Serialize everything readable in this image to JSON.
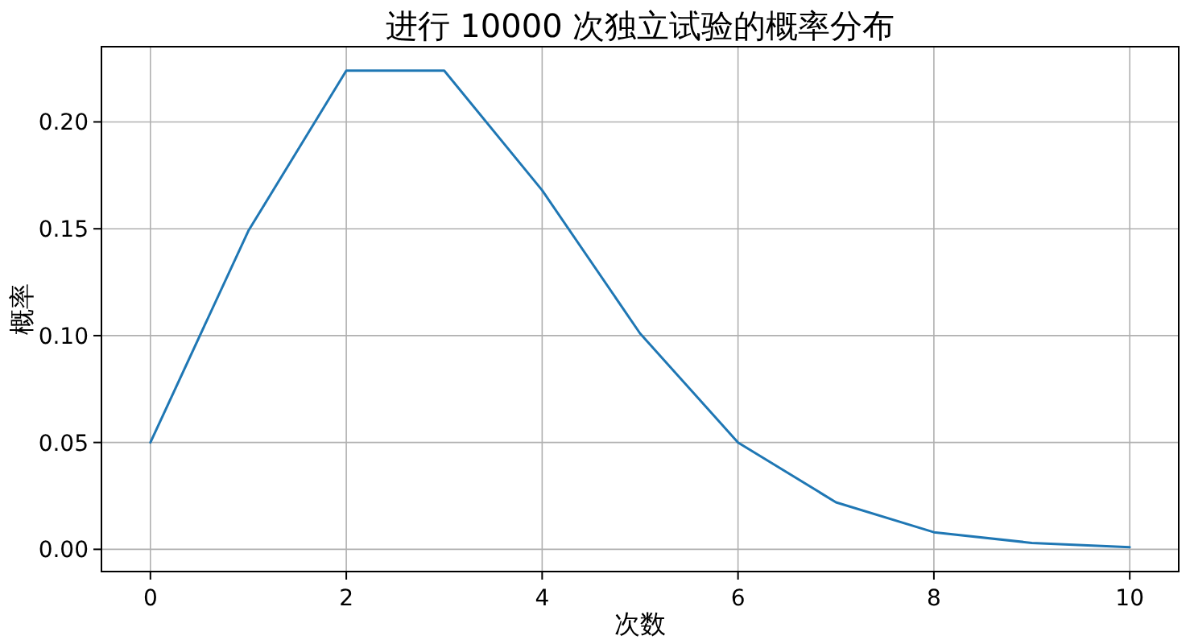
{
  "chart_data": {
    "type": "line",
    "title": "进行 10000 次独立试验的概率分布",
    "xlabel": "次数",
    "ylabel": "概率",
    "x": [
      0,
      1,
      2,
      3,
      4,
      5,
      6,
      7,
      8,
      9,
      10
    ],
    "values": [
      0.05,
      0.149,
      0.224,
      0.224,
      0.168,
      0.101,
      0.05,
      0.022,
      0.008,
      0.003,
      0.001
    ],
    "color": "#1f77b4",
    "xlim": [
      -0.5,
      10.5
    ],
    "xticks": [
      0,
      2,
      4,
      6,
      8,
      10
    ],
    "ylim": [
      -0.0104,
      0.2352
    ],
    "yticks": [
      {
        "value": 0,
        "label": "0.00"
      },
      0.05,
      {
        "value": 0.1,
        "label": "0.10"
      },
      0.15,
      {
        "value": 0.2,
        "label": "0.20"
      }
    ],
    "grid": true
  }
}
